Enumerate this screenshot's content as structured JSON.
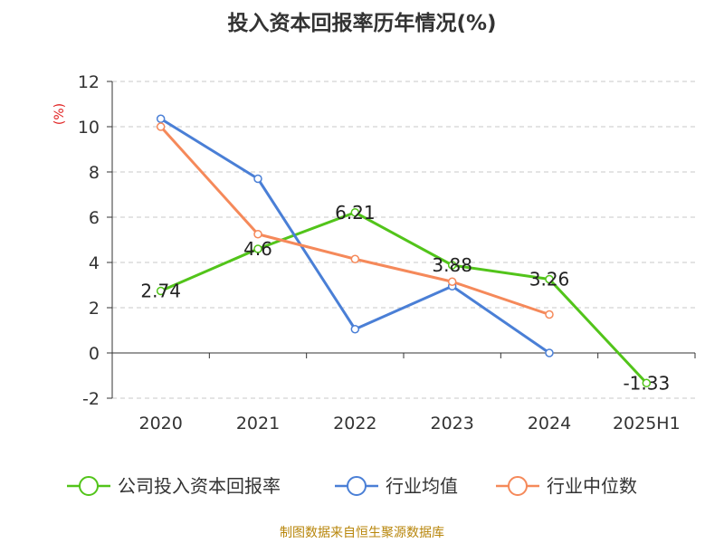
{
  "chart_data": {
    "type": "line",
    "title": "投入资本回报率历年情况(%)",
    "ylabel": "(%)",
    "xlabel": "",
    "categories": [
      "2020",
      "2021",
      "2022",
      "2023",
      "2024",
      "2025H1"
    ],
    "ylim": [
      -2,
      12
    ],
    "yticks": [
      -2,
      0,
      2,
      4,
      6,
      8,
      10,
      12
    ],
    "grid": true,
    "legend_position": "bottom",
    "series": [
      {
        "name": "公司投入资本回报率",
        "color": "#52c41a",
        "values": [
          2.74,
          4.6,
          6.21,
          3.88,
          3.26,
          -1.33
        ],
        "labels": [
          "2.74",
          "4.6",
          "6.21",
          "3.88",
          "3.26",
          "-1.33"
        ]
      },
      {
        "name": "行业均值",
        "color": "#4a7fd6",
        "values": [
          10.35,
          7.7,
          1.05,
          2.95,
          0.0,
          null
        ]
      },
      {
        "name": "行业中位数",
        "color": "#f5895a",
        "values": [
          10.0,
          5.25,
          4.15,
          3.15,
          1.7,
          null
        ]
      }
    ]
  },
  "source": "制图数据来自恒生聚源数据库"
}
